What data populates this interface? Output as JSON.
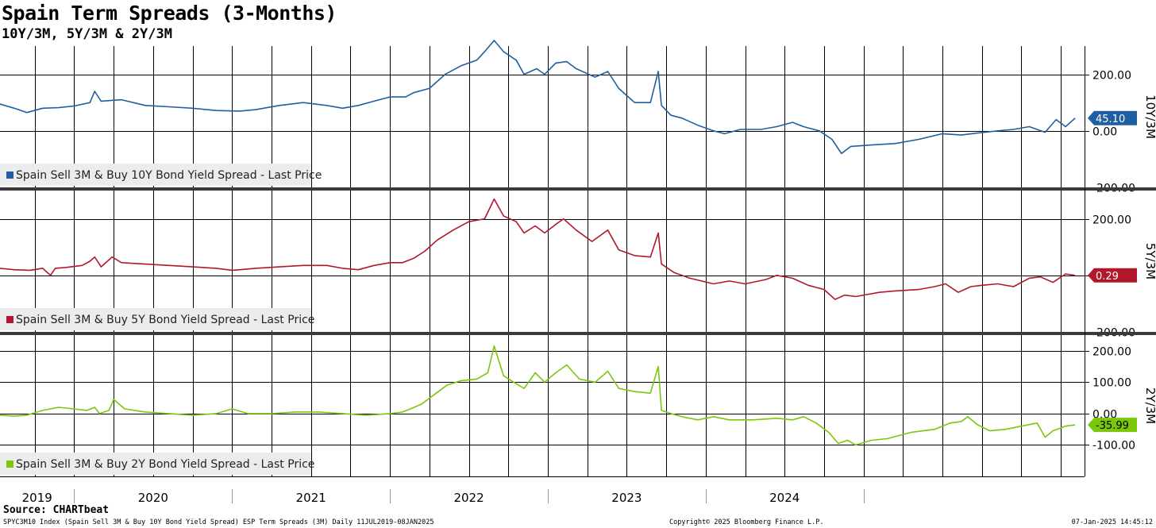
{
  "title": "Spain Term Spreads (3-Months)",
  "subtitle": "10Y/3M, 5Y/3M & 2Y/3M",
  "source": "Source: CHARTbeat",
  "footer": {
    "left": "SPYC3M10 Index (Spain Sell 3M & Buy 10Y Bond Yield Spread) ESP Term Spreads (3M)  Daily 11JUL2019-08JAN2025",
    "center": "Copyright© 2025 Bloomberg Finance L.P.",
    "right": "07-Jan-2025 14:45:12"
  },
  "chart_data": [
    {
      "type": "line",
      "axis_label": "10Y/3M",
      "legend": "Spain Sell 3M & Buy 10Y Bond Yield Spread - Last Price",
      "last_value_label": "45.10",
      "color": "#1f5f9f",
      "ylim": [
        -200,
        300
      ],
      "y_ticks": [
        200,
        0,
        -200
      ],
      "y_tick_labels": [
        "200.00",
        "0.00",
        "-200.00"
      ],
      "x_ticks": [
        "2019",
        "2020",
        "2021",
        "2022",
        "2023",
        "2024"
      ],
      "grid": true,
      "points": [
        [
          2019.53,
          95
        ],
        [
          2019.62,
          80
        ],
        [
          2019.7,
          65
        ],
        [
          2019.8,
          80
        ],
        [
          2019.9,
          82
        ],
        [
          2020.0,
          88
        ],
        [
          2020.1,
          100
        ],
        [
          2020.13,
          140
        ],
        [
          2020.17,
          105
        ],
        [
          2020.3,
          110
        ],
        [
          2020.45,
          90
        ],
        [
          2020.6,
          85
        ],
        [
          2020.75,
          80
        ],
        [
          2020.9,
          72
        ],
        [
          2021.05,
          70
        ],
        [
          2021.15,
          75
        ],
        [
          2021.3,
          90
        ],
        [
          2021.45,
          100
        ],
        [
          2021.6,
          90
        ],
        [
          2021.7,
          80
        ],
        [
          2021.8,
          90
        ],
        [
          2021.9,
          105
        ],
        [
          2022.0,
          120
        ],
        [
          2022.1,
          120
        ],
        [
          2022.15,
          135
        ],
        [
          2022.25,
          150
        ],
        [
          2022.35,
          200
        ],
        [
          2022.45,
          230
        ],
        [
          2022.55,
          250
        ],
        [
          2022.6,
          280
        ],
        [
          2022.66,
          320
        ],
        [
          2022.72,
          280
        ],
        [
          2022.8,
          250
        ],
        [
          2022.85,
          200
        ],
        [
          2022.93,
          220
        ],
        [
          2022.98,
          200
        ],
        [
          2023.05,
          240
        ],
        [
          2023.12,
          245
        ],
        [
          2023.18,
          220
        ],
        [
          2023.3,
          190
        ],
        [
          2023.38,
          210
        ],
        [
          2023.45,
          150
        ],
        [
          2023.55,
          100
        ],
        [
          2023.65,
          100
        ],
        [
          2023.7,
          210
        ],
        [
          2023.72,
          90
        ],
        [
          2023.78,
          55
        ],
        [
          2023.85,
          45
        ],
        [
          2023.95,
          20
        ],
        [
          2024.05,
          0
        ],
        [
          2024.12,
          -10
        ],
        [
          2024.22,
          5
        ],
        [
          2024.35,
          5
        ],
        [
          2024.45,
          15
        ],
        [
          2024.55,
          30
        ],
        [
          2024.62,
          15
        ],
        [
          2024.72,
          0
        ],
        [
          2024.8,
          -30
        ],
        [
          2024.86,
          -80
        ],
        [
          2024.92,
          -55
        ],
        [
          2025.05,
          -50
        ],
        [
          2025.2,
          -45
        ],
        [
          2025.35,
          -30
        ],
        [
          2025.5,
          -10
        ],
        [
          2025.62,
          -15
        ],
        [
          2025.72,
          -8
        ],
        [
          2025.85,
          0
        ],
        [
          2025.95,
          5
        ],
        [
          2026.05,
          15
        ],
        [
          2026.15,
          -5
        ],
        [
          2026.22,
          40
        ],
        [
          2026.28,
          15
        ],
        [
          2026.34,
          45
        ]
      ]
    },
    {
      "type": "line",
      "axis_label": "5Y/3M",
      "legend": "Spain Sell 3M & Buy 5Y Bond Yield Spread - Last Price",
      "last_value_label": "0.29",
      "color": "#b2182b",
      "ylim": [
        -200,
        300
      ],
      "y_ticks": [
        200,
        0,
        -200
      ],
      "y_tick_labels": [
        "200.00",
        "",
        "-200.00"
      ],
      "x_ticks": [
        "2019",
        "2020",
        "2021",
        "2022",
        "2023",
        "2024"
      ],
      "grid": true,
      "points": [
        [
          2019.53,
          25
        ],
        [
          2019.62,
          20
        ],
        [
          2019.72,
          18
        ],
        [
          2019.8,
          25
        ],
        [
          2019.85,
          0
        ],
        [
          2019.88,
          25
        ],
        [
          2019.95,
          28
        ],
        [
          2020.05,
          35
        ],
        [
          2020.1,
          50
        ],
        [
          2020.13,
          65
        ],
        [
          2020.17,
          30
        ],
        [
          2020.24,
          65
        ],
        [
          2020.3,
          45
        ],
        [
          2020.45,
          40
        ],
        [
          2020.6,
          35
        ],
        [
          2020.75,
          30
        ],
        [
          2020.9,
          25
        ],
        [
          2021.0,
          18
        ],
        [
          2021.05,
          20
        ],
        [
          2021.15,
          25
        ],
        [
          2021.3,
          30
        ],
        [
          2021.45,
          35
        ],
        [
          2021.6,
          35
        ],
        [
          2021.7,
          25
        ],
        [
          2021.8,
          20
        ],
        [
          2021.9,
          35
        ],
        [
          2022.0,
          45
        ],
        [
          2022.08,
          45
        ],
        [
          2022.15,
          60
        ],
        [
          2022.22,
          85
        ],
        [
          2022.3,
          125
        ],
        [
          2022.4,
          160
        ],
        [
          2022.5,
          190
        ],
        [
          2022.6,
          200
        ],
        [
          2022.66,
          270
        ],
        [
          2022.72,
          210
        ],
        [
          2022.8,
          190
        ],
        [
          2022.85,
          150
        ],
        [
          2022.92,
          175
        ],
        [
          2022.98,
          150
        ],
        [
          2023.05,
          180
        ],
        [
          2023.1,
          200
        ],
        [
          2023.18,
          160
        ],
        [
          2023.28,
          120
        ],
        [
          2023.38,
          160
        ],
        [
          2023.45,
          90
        ],
        [
          2023.55,
          70
        ],
        [
          2023.65,
          65
        ],
        [
          2023.7,
          150
        ],
        [
          2023.72,
          40
        ],
        [
          2023.8,
          10
        ],
        [
          2023.9,
          -10
        ],
        [
          2024.05,
          -30
        ],
        [
          2024.15,
          -20
        ],
        [
          2024.25,
          -30
        ],
        [
          2024.38,
          -15
        ],
        [
          2024.45,
          0
        ],
        [
          2024.55,
          -10
        ],
        [
          2024.65,
          -35
        ],
        [
          2024.75,
          -50
        ],
        [
          2024.82,
          -85
        ],
        [
          2024.88,
          -70
        ],
        [
          2024.95,
          -75
        ],
        [
          2025.1,
          -60
        ],
        [
          2025.2,
          -55
        ],
        [
          2025.35,
          -50
        ],
        [
          2025.45,
          -40
        ],
        [
          2025.52,
          -30
        ],
        [
          2025.6,
          -60
        ],
        [
          2025.68,
          -40
        ],
        [
          2025.75,
          -35
        ],
        [
          2025.85,
          -30
        ],
        [
          2025.95,
          -40
        ],
        [
          2026.05,
          -10
        ],
        [
          2026.12,
          -5
        ],
        [
          2026.2,
          -25
        ],
        [
          2026.28,
          5
        ],
        [
          2026.34,
          0
        ]
      ]
    },
    {
      "type": "line",
      "axis_label": "2Y/3M",
      "legend": "Spain Sell 3M & Buy 2Y Bond Yield Spread - Last Price",
      "last_value_label": "-35.99",
      "color": "#7ac70c",
      "ylim": [
        -200,
        250
      ],
      "y_ticks": [
        200,
        100,
        0,
        -100
      ],
      "y_tick_labels": [
        "200.00",
        "100.00",
        "0.00",
        "-100.00"
      ],
      "x_ticks": [
        "2019",
        "2020",
        "2021",
        "2022",
        "2023",
        "2024"
      ],
      "grid": true,
      "points": [
        [
          2019.53,
          -5
        ],
        [
          2019.62,
          -8
        ],
        [
          2019.7,
          -5
        ],
        [
          2019.8,
          10
        ],
        [
          2019.9,
          20
        ],
        [
          2020.0,
          15
        ],
        [
          2020.08,
          10
        ],
        [
          2020.13,
          20
        ],
        [
          2020.16,
          0
        ],
        [
          2020.22,
          10
        ],
        [
          2020.25,
          45
        ],
        [
          2020.32,
          15
        ],
        [
          2020.45,
          5
        ],
        [
          2020.6,
          0
        ],
        [
          2020.75,
          -5
        ],
        [
          2020.9,
          0
        ],
        [
          2021.0,
          15
        ],
        [
          2021.1,
          0
        ],
        [
          2021.25,
          0
        ],
        [
          2021.4,
          5
        ],
        [
          2021.55,
          5
        ],
        [
          2021.7,
          0
        ],
        [
          2021.85,
          -5
        ],
        [
          2022.0,
          0
        ],
        [
          2022.08,
          5
        ],
        [
          2022.13,
          15
        ],
        [
          2022.2,
          30
        ],
        [
          2022.28,
          60
        ],
        [
          2022.36,
          90
        ],
        [
          2022.45,
          105
        ],
        [
          2022.55,
          110
        ],
        [
          2022.62,
          130
        ],
        [
          2022.66,
          215
        ],
        [
          2022.72,
          120
        ],
        [
          2022.8,
          95
        ],
        [
          2022.85,
          80
        ],
        [
          2022.92,
          130
        ],
        [
          2022.98,
          100
        ],
        [
          2023.05,
          130
        ],
        [
          2023.12,
          155
        ],
        [
          2023.2,
          110
        ],
        [
          2023.3,
          100
        ],
        [
          2023.38,
          135
        ],
        [
          2023.45,
          80
        ],
        [
          2023.55,
          70
        ],
        [
          2023.65,
          65
        ],
        [
          2023.7,
          150
        ],
        [
          2023.72,
          10
        ],
        [
          2023.78,
          0
        ],
        [
          2023.85,
          -10
        ],
        [
          2023.95,
          -20
        ],
        [
          2024.05,
          -10
        ],
        [
          2024.15,
          -20
        ],
        [
          2024.3,
          -20
        ],
        [
          2024.45,
          -15
        ],
        [
          2024.55,
          -20
        ],
        [
          2024.62,
          -10
        ],
        [
          2024.7,
          -30
        ],
        [
          2024.78,
          -60
        ],
        [
          2024.84,
          -95
        ],
        [
          2024.9,
          -85
        ],
        [
          2024.95,
          -100
        ],
        [
          2025.05,
          -85
        ],
        [
          2025.15,
          -80
        ],
        [
          2025.3,
          -60
        ],
        [
          2025.45,
          -50
        ],
        [
          2025.55,
          -30
        ],
        [
          2025.62,
          -25
        ],
        [
          2025.66,
          -10
        ],
        [
          2025.72,
          -35
        ],
        [
          2025.8,
          -55
        ],
        [
          2025.9,
          -50
        ],
        [
          2026.0,
          -40
        ],
        [
          2026.1,
          -30
        ],
        [
          2026.15,
          -75
        ],
        [
          2026.2,
          -55
        ],
        [
          2026.28,
          -40
        ],
        [
          2026.34,
          -36
        ]
      ]
    }
  ],
  "x_axis": {
    "year_labels": [
      "2019",
      "2020",
      "2021",
      "2022",
      "2023",
      "2024"
    ]
  }
}
